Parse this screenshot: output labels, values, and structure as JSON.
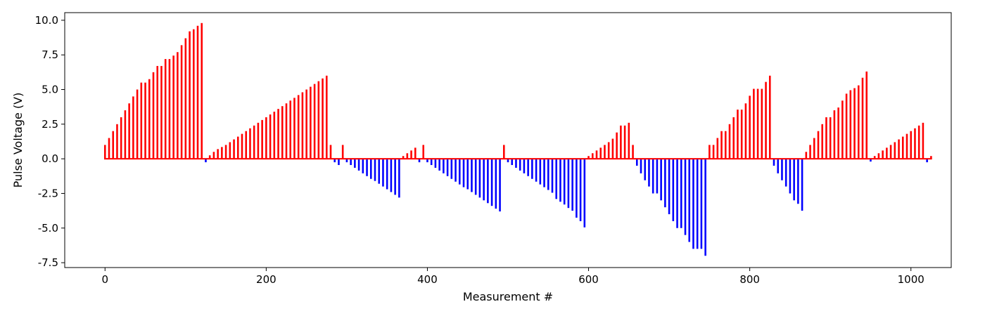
{
  "chart_data": {
    "type": "bar",
    "title": "",
    "xlabel": "Measurement #",
    "ylabel": "Pulse Voltage (V)",
    "xlim": [
      -50,
      1050
    ],
    "ylim": [
      -7.85,
      10.55
    ],
    "xticks": [
      0,
      200,
      400,
      600,
      800,
      1000
    ],
    "yticks": [
      -7.5,
      -5.0,
      -2.5,
      0.0,
      2.5,
      5.0,
      7.5,
      10.0
    ],
    "grid": false,
    "colors": {
      "positive": "#ff0000",
      "negative": "#0000ff",
      "axes": "#000000",
      "background": "#ffffff"
    },
    "x_step": 5,
    "points": [
      [
        0,
        1.0
      ],
      [
        5,
        1.5
      ],
      [
        10,
        2.0
      ],
      [
        15,
        2.5
      ],
      [
        20,
        3.0
      ],
      [
        25,
        3.5
      ],
      [
        30,
        4.0
      ],
      [
        35,
        4.5
      ],
      [
        40,
        5.0
      ],
      [
        45,
        5.5
      ],
      [
        50,
        5.5
      ],
      [
        55,
        5.75
      ],
      [
        60,
        6.25
      ],
      [
        65,
        6.7
      ],
      [
        70,
        6.7
      ],
      [
        75,
        7.2
      ],
      [
        80,
        7.2
      ],
      [
        85,
        7.45
      ],
      [
        90,
        7.7
      ],
      [
        95,
        8.2
      ],
      [
        100,
        8.7
      ],
      [
        105,
        9.2
      ],
      [
        110,
        9.35
      ],
      [
        115,
        9.6
      ],
      [
        120,
        9.8
      ],
      [
        125,
        -0.25
      ],
      [
        130,
        0.25
      ],
      [
        135,
        0.5
      ],
      [
        140,
        0.7
      ],
      [
        145,
        0.85
      ],
      [
        150,
        1.0
      ],
      [
        155,
        1.2
      ],
      [
        160,
        1.4
      ],
      [
        165,
        1.6
      ],
      [
        170,
        1.8
      ],
      [
        175,
        2.0
      ],
      [
        180,
        2.2
      ],
      [
        185,
        2.4
      ],
      [
        190,
        2.6
      ],
      [
        195,
        2.8
      ],
      [
        200,
        3.0
      ],
      [
        205,
        3.2
      ],
      [
        210,
        3.4
      ],
      [
        215,
        3.6
      ],
      [
        220,
        3.8
      ],
      [
        225,
        4.0
      ],
      [
        230,
        4.2
      ],
      [
        235,
        4.4
      ],
      [
        240,
        4.6
      ],
      [
        245,
        4.8
      ],
      [
        250,
        5.0
      ],
      [
        255,
        5.2
      ],
      [
        260,
        5.4
      ],
      [
        265,
        5.6
      ],
      [
        270,
        5.8
      ],
      [
        275,
        6.0
      ],
      [
        280,
        1.0
      ],
      [
        285,
        -0.25
      ],
      [
        290,
        -0.45
      ],
      [
        295,
        1.0
      ],
      [
        300,
        -0.25
      ],
      [
        305,
        -0.45
      ],
      [
        310,
        -0.65
      ],
      [
        315,
        -0.85
      ],
      [
        320,
        -1.05
      ],
      [
        325,
        -1.25
      ],
      [
        330,
        -1.45
      ],
      [
        335,
        -1.6
      ],
      [
        340,
        -1.8
      ],
      [
        345,
        -2.0
      ],
      [
        350,
        -2.2
      ],
      [
        355,
        -2.4
      ],
      [
        360,
        -2.6
      ],
      [
        365,
        -2.8
      ],
      [
        370,
        0.2
      ],
      [
        375,
        0.4
      ],
      [
        380,
        0.6
      ],
      [
        385,
        0.8
      ],
      [
        390,
        -0.25
      ],
      [
        395,
        1.0
      ],
      [
        400,
        -0.25
      ],
      [
        405,
        -0.45
      ],
      [
        410,
        -0.65
      ],
      [
        415,
        -0.85
      ],
      [
        420,
        -1.05
      ],
      [
        425,
        -1.25
      ],
      [
        430,
        -1.45
      ],
      [
        435,
        -1.65
      ],
      [
        440,
        -1.85
      ],
      [
        445,
        -2.05
      ],
      [
        450,
        -2.2
      ],
      [
        455,
        -2.4
      ],
      [
        460,
        -2.6
      ],
      [
        465,
        -2.8
      ],
      [
        470,
        -3.0
      ],
      [
        475,
        -3.2
      ],
      [
        480,
        -3.4
      ],
      [
        485,
        -3.6
      ],
      [
        490,
        -3.8
      ],
      [
        495,
        1.0
      ],
      [
        500,
        -0.25
      ],
      [
        505,
        -0.45
      ],
      [
        510,
        -0.65
      ],
      [
        515,
        -0.85
      ],
      [
        520,
        -1.05
      ],
      [
        525,
        -1.25
      ],
      [
        530,
        -1.45
      ],
      [
        535,
        -1.65
      ],
      [
        540,
        -1.85
      ],
      [
        545,
        -2.05
      ],
      [
        550,
        -2.25
      ],
      [
        555,
        -2.45
      ],
      [
        560,
        -2.9
      ],
      [
        565,
        -3.1
      ],
      [
        570,
        -3.3
      ],
      [
        575,
        -3.55
      ],
      [
        580,
        -3.75
      ],
      [
        585,
        -4.25
      ],
      [
        590,
        -4.5
      ],
      [
        595,
        -4.95
      ],
      [
        600,
        0.2
      ],
      [
        605,
        0.4
      ],
      [
        610,
        0.6
      ],
      [
        615,
        0.8
      ],
      [
        620,
        1.0
      ],
      [
        625,
        1.2
      ],
      [
        630,
        1.45
      ],
      [
        635,
        1.9
      ],
      [
        640,
        2.4
      ],
      [
        645,
        2.4
      ],
      [
        650,
        2.6
      ],
      [
        655,
        1.0
      ],
      [
        660,
        -0.5
      ],
      [
        665,
        -1.05
      ],
      [
        670,
        -1.55
      ],
      [
        675,
        -2.0
      ],
      [
        680,
        -2.5
      ],
      [
        685,
        -2.5
      ],
      [
        690,
        -3.0
      ],
      [
        695,
        -3.5
      ],
      [
        700,
        -4.0
      ],
      [
        705,
        -4.5
      ],
      [
        710,
        -5.0
      ],
      [
        715,
        -5.0
      ],
      [
        720,
        -5.5
      ],
      [
        725,
        -6.0
      ],
      [
        730,
        -6.5
      ],
      [
        735,
        -6.5
      ],
      [
        740,
        -6.5
      ],
      [
        745,
        -7.0
      ],
      [
        750,
        1.0
      ],
      [
        755,
        1.0
      ],
      [
        760,
        1.5
      ],
      [
        765,
        2.0
      ],
      [
        770,
        2.0
      ],
      [
        775,
        2.5
      ],
      [
        780,
        3.0
      ],
      [
        785,
        3.55
      ],
      [
        790,
        3.55
      ],
      [
        795,
        4.0
      ],
      [
        800,
        4.55
      ],
      [
        805,
        5.05
      ],
      [
        810,
        5.05
      ],
      [
        815,
        5.05
      ],
      [
        820,
        5.55
      ],
      [
        825,
        6.0
      ],
      [
        830,
        -0.5
      ],
      [
        835,
        -1.05
      ],
      [
        840,
        -1.55
      ],
      [
        845,
        -2.0
      ],
      [
        850,
        -2.5
      ],
      [
        855,
        -3.0
      ],
      [
        860,
        -3.25
      ],
      [
        865,
        -3.75
      ],
      [
        870,
        0.5
      ],
      [
        875,
        1.0
      ],
      [
        880,
        1.5
      ],
      [
        885,
        2.0
      ],
      [
        890,
        2.5
      ],
      [
        895,
        3.0
      ],
      [
        900,
        3.0
      ],
      [
        905,
        3.5
      ],
      [
        910,
        3.7
      ],
      [
        915,
        4.2
      ],
      [
        920,
        4.7
      ],
      [
        925,
        4.95
      ],
      [
        930,
        5.1
      ],
      [
        935,
        5.3
      ],
      [
        940,
        5.85
      ],
      [
        945,
        6.3
      ],
      [
        950,
        -0.2
      ],
      [
        955,
        0.2
      ],
      [
        960,
        0.4
      ],
      [
        965,
        0.6
      ],
      [
        970,
        0.8
      ],
      [
        975,
        1.0
      ],
      [
        980,
        1.2
      ],
      [
        985,
        1.4
      ],
      [
        990,
        1.6
      ],
      [
        995,
        1.8
      ],
      [
        1000,
        2.0
      ],
      [
        1005,
        2.2
      ],
      [
        1010,
        2.4
      ],
      [
        1015,
        2.6
      ],
      [
        1020,
        -0.25
      ],
      [
        1025,
        0.2
      ]
    ]
  }
}
